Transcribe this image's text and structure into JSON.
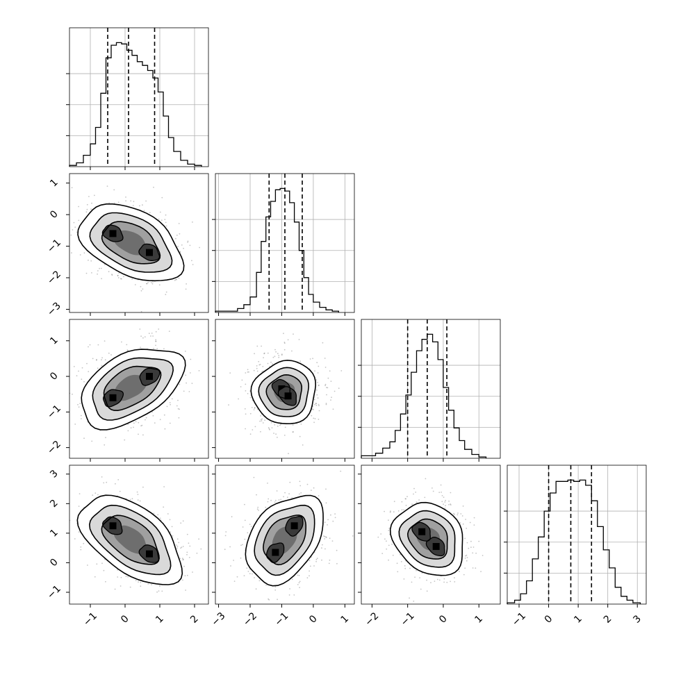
{
  "chart_data": {
    "type": "corner",
    "title": "",
    "grid": true,
    "variables": [
      {
        "index": 0,
        "axis_range": [
          -1.6,
          2.4
        ],
        "ticks": [
          -1,
          0,
          1,
          2
        ],
        "tick_labels": [
          "−1",
          "0",
          "1",
          "2"
        ]
      },
      {
        "index": 1,
        "axis_range": [
          -3.1,
          1.3
        ],
        "ticks": [
          -3,
          -2,
          -1,
          0,
          1
        ],
        "tick_labels": [
          "−3",
          "−2",
          "−1",
          "0",
          "1"
        ]
      },
      {
        "index": 2,
        "axis_range": [
          -2.3,
          1.6
        ],
        "ticks": [
          -2,
          -1,
          0,
          1
        ],
        "tick_labels": [
          "−2",
          "−1",
          "0",
          "1"
        ]
      },
      {
        "index": 3,
        "axis_range": [
          -1.4,
          3.3
        ],
        "ticks": [
          -1,
          0,
          1,
          2,
          3
        ],
        "tick_labels": [
          "−1",
          "0",
          "1",
          "2",
          "3"
        ]
      }
    ],
    "histograms": [
      {
        "variable": 0,
        "quantiles": [
          -0.5,
          0.1,
          0.85
        ],
        "bins_x": [
          -1.6,
          -1.4,
          -1.2,
          -1.0,
          -0.85,
          -0.7,
          -0.55,
          -0.4,
          -0.25,
          -0.1,
          0.05,
          0.2,
          0.35,
          0.5,
          0.65,
          0.8,
          0.95,
          1.1,
          1.25,
          1.4,
          1.6,
          1.8,
          2.0,
          2.2
        ],
        "values": [
          0.01,
          0.03,
          0.09,
          0.18,
          0.31,
          0.58,
          0.86,
          0.96,
          0.98,
          0.97,
          0.92,
          0.88,
          0.83,
          0.8,
          0.76,
          0.7,
          0.59,
          0.4,
          0.23,
          0.12,
          0.05,
          0.02,
          0.01
        ]
      },
      {
        "variable": 1,
        "quantiles": [
          -1.4,
          -0.9,
          -0.35
        ],
        "bins_x": [
          -3.1,
          -2.4,
          -2.2,
          -2.0,
          -1.8,
          -1.65,
          -1.5,
          -1.35,
          -1.2,
          -1.05,
          -0.9,
          -0.75,
          -0.6,
          -0.45,
          -0.3,
          -0.15,
          0.0,
          0.2,
          0.4,
          0.6,
          0.8
        ],
        "values": [
          0.01,
          0.03,
          0.06,
          0.12,
          0.31,
          0.55,
          0.74,
          0.86,
          0.95,
          0.96,
          0.94,
          0.85,
          0.7,
          0.48,
          0.27,
          0.14,
          0.08,
          0.04,
          0.02,
          0.01
        ]
      },
      {
        "variable": 2,
        "quantiles": [
          -1.0,
          -0.45,
          0.1
        ],
        "bins_x": [
          -2.3,
          -1.9,
          -1.7,
          -1.5,
          -1.35,
          -1.2,
          -1.05,
          -0.9,
          -0.75,
          -0.6,
          -0.45,
          -0.3,
          -0.15,
          0.0,
          0.15,
          0.3,
          0.45,
          0.6,
          0.8,
          1.0,
          1.2
        ],
        "values": [
          0.02,
          0.04,
          0.08,
          0.13,
          0.22,
          0.35,
          0.5,
          0.68,
          0.85,
          0.94,
          0.98,
          0.92,
          0.78,
          0.56,
          0.38,
          0.24,
          0.14,
          0.07,
          0.03,
          0.01
        ]
      },
      {
        "variable": 3,
        "quantiles": [
          0.0,
          0.75,
          1.45
        ],
        "bins_x": [
          -1.4,
          -1.15,
          -0.95,
          -0.75,
          -0.55,
          -0.35,
          -0.15,
          0.05,
          0.25,
          0.45,
          0.65,
          0.85,
          1.05,
          1.25,
          1.45,
          1.65,
          1.85,
          2.05,
          2.25,
          2.45,
          2.65,
          2.85,
          3.1
        ],
        "values": [
          0.01,
          0.03,
          0.08,
          0.18,
          0.35,
          0.52,
          0.72,
          0.86,
          0.95,
          0.95,
          0.96,
          0.95,
          0.96,
          0.92,
          0.8,
          0.6,
          0.42,
          0.28,
          0.13,
          0.06,
          0.03,
          0.01
        ]
      }
    ],
    "pairs": [
      {
        "x": 0,
        "y": 1,
        "modes": [
          {
            "x": -0.35,
            "y": -0.6
          },
          {
            "x": 0.7,
            "y": -1.2
          }
        ]
      },
      {
        "x": 0,
        "y": 2,
        "modes": [
          {
            "x": -0.35,
            "y": -0.6
          },
          {
            "x": 0.7,
            "y": 0.0
          }
        ]
      },
      {
        "x": 0,
        "y": 3,
        "modes": [
          {
            "x": -0.35,
            "y": 1.25
          },
          {
            "x": 0.7,
            "y": 0.3
          }
        ]
      },
      {
        "x": 1,
        "y": 2,
        "modes": [
          {
            "x": -1.0,
            "y": -0.35
          },
          {
            "x": -0.8,
            "y": -0.55
          }
        ]
      },
      {
        "x": 1,
        "y": 3,
        "modes": [
          {
            "x": -1.2,
            "y": 0.35
          },
          {
            "x": -0.6,
            "y": 1.25
          }
        ]
      },
      {
        "x": 2,
        "y": 3,
        "modes": [
          {
            "x": -0.6,
            "y": 1.05
          },
          {
            "x": -0.2,
            "y": 0.55
          }
        ]
      }
    ]
  }
}
